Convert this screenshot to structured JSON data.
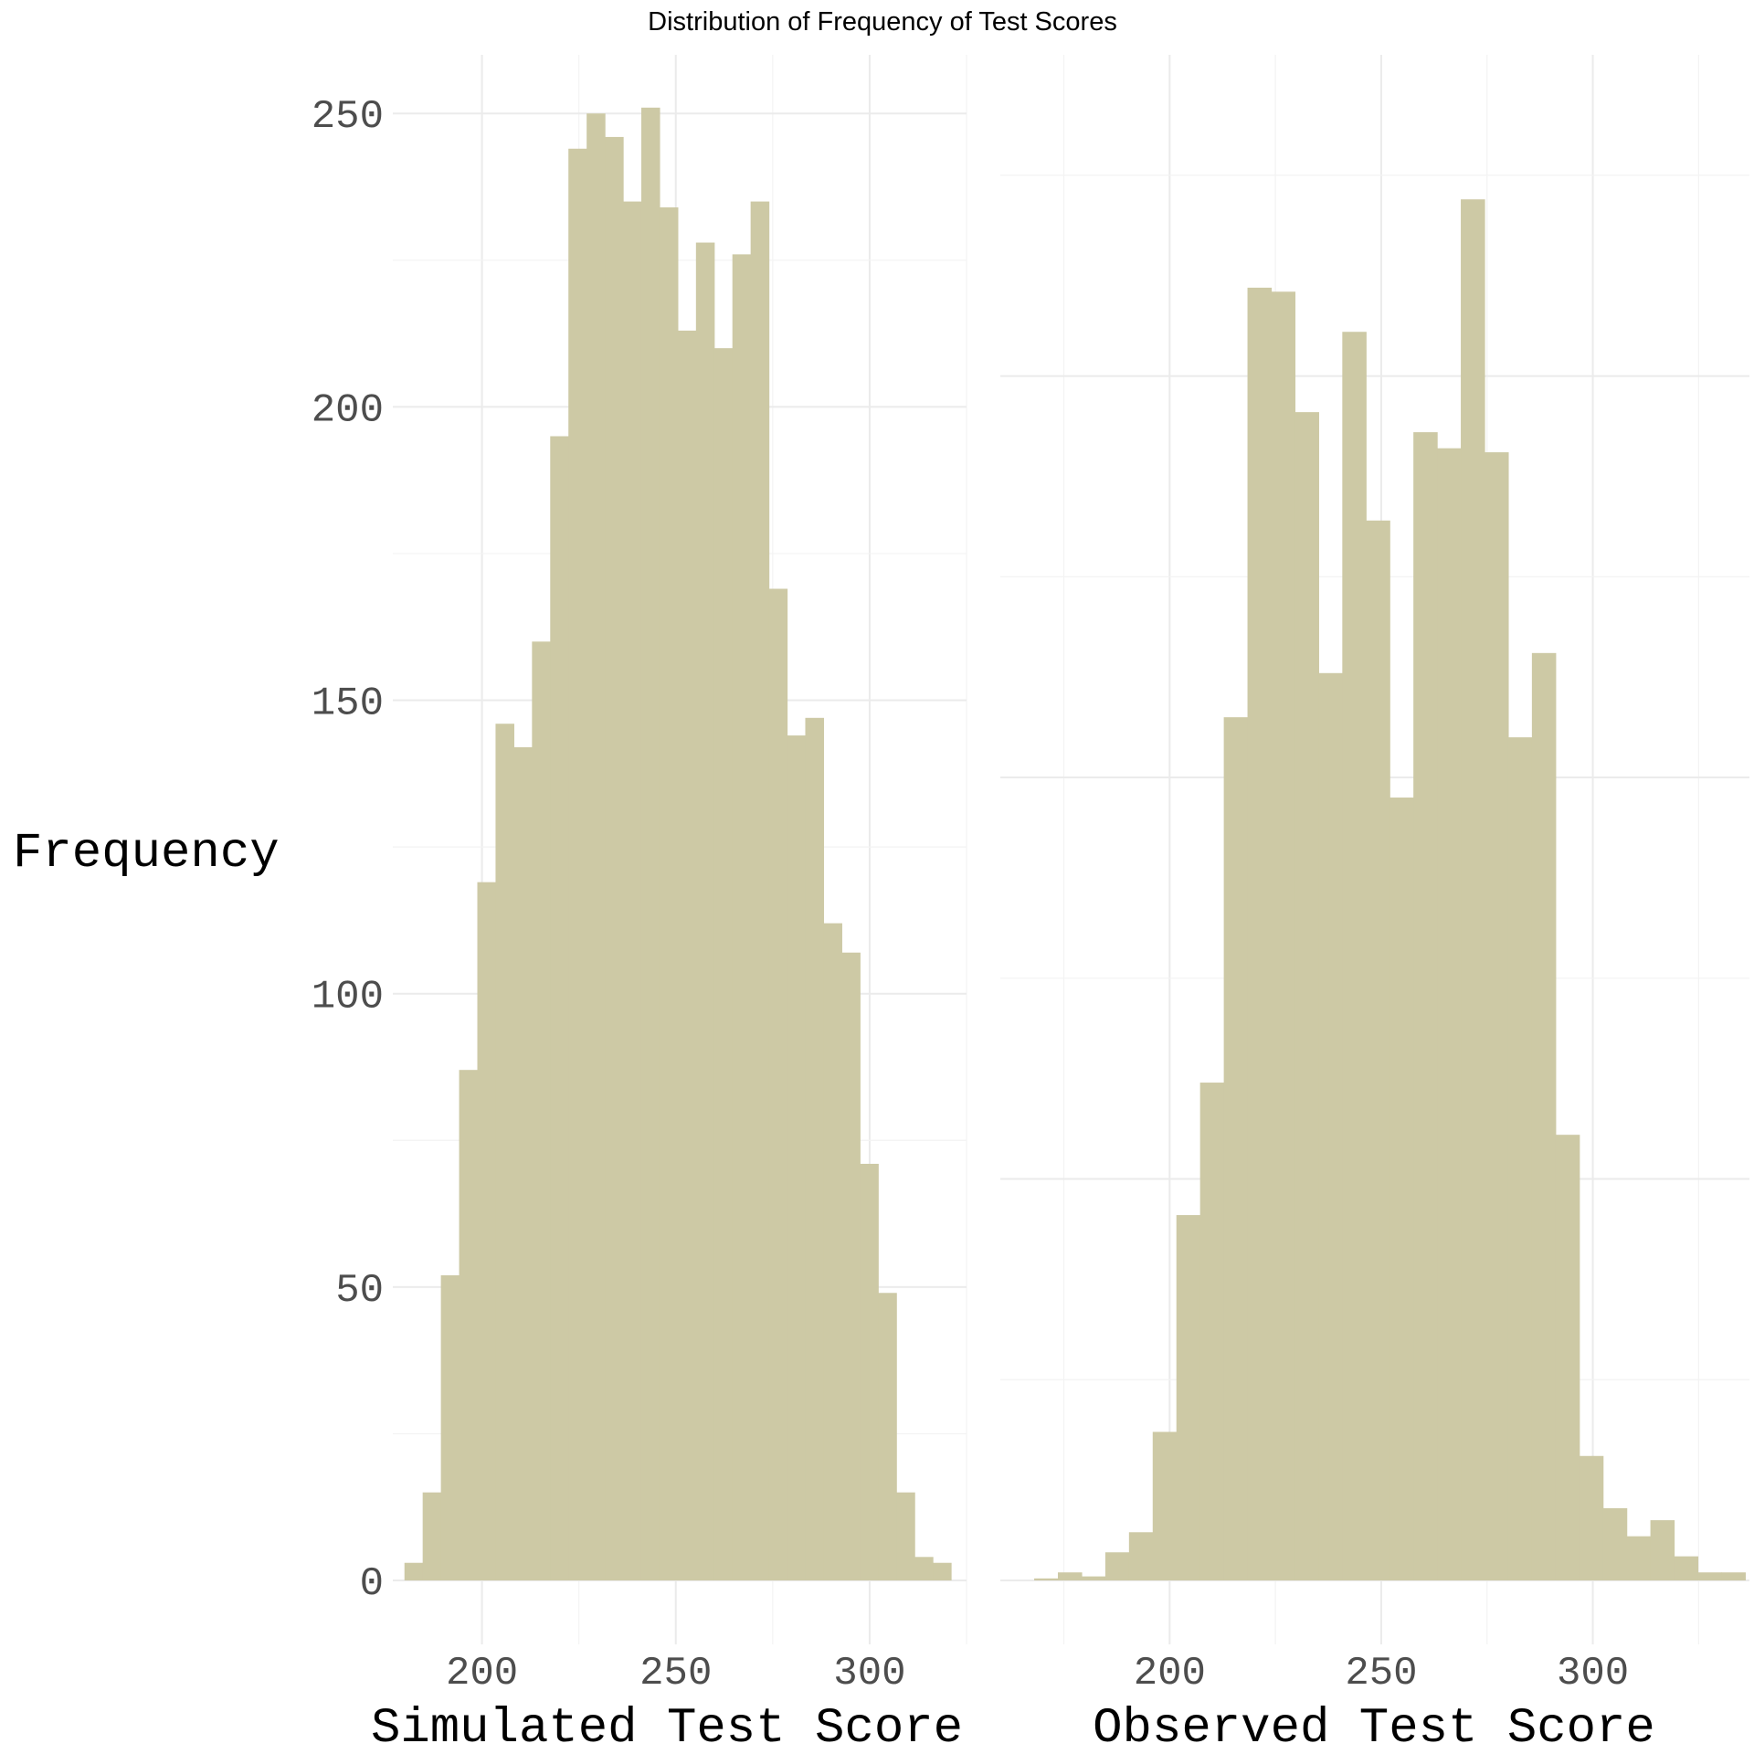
{
  "title": "Distribution of Frequency of Test Scores",
  "bar_color": "#cdc9a5",
  "chart_data": [
    {
      "type": "bar",
      "subtype": "histogram",
      "xlabel": "Simulated Test Score",
      "ylabel": "Frequency",
      "xlim": [
        177,
        325
      ],
      "ylim": [
        0,
        260
      ],
      "x_ticks": [
        200,
        250,
        300
      ],
      "y_ticks": [
        0,
        50,
        100,
        150,
        200,
        250
      ],
      "grid": true,
      "bin_start": 180,
      "bin_width": 4.7,
      "values": [
        3,
        15,
        52,
        87,
        119,
        146,
        142,
        160,
        195,
        244,
        250,
        246,
        235,
        251,
        234,
        213,
        228,
        210,
        226,
        235,
        169,
        144,
        147,
        112,
        107,
        71,
        49,
        15,
        4,
        3
      ]
    },
    {
      "type": "bar",
      "subtype": "histogram",
      "xlabel": "Observed Test Score",
      "ylabel": "",
      "xlim": [
        160,
        337
      ],
      "ylim": [
        0,
        380
      ],
      "x_ticks": [
        200,
        250,
        300
      ],
      "y_ticks": [],
      "grid": true,
      "bin_start": 168,
      "bin_width": 5.6,
      "values": [
        0.5,
        2,
        1,
        7,
        12,
        37,
        91,
        124,
        215,
        322,
        321,
        291,
        226,
        311,
        264,
        195,
        286,
        282,
        344,
        281,
        210,
        231,
        111,
        31,
        18,
        11,
        15,
        6,
        2,
        2
      ]
    }
  ]
}
